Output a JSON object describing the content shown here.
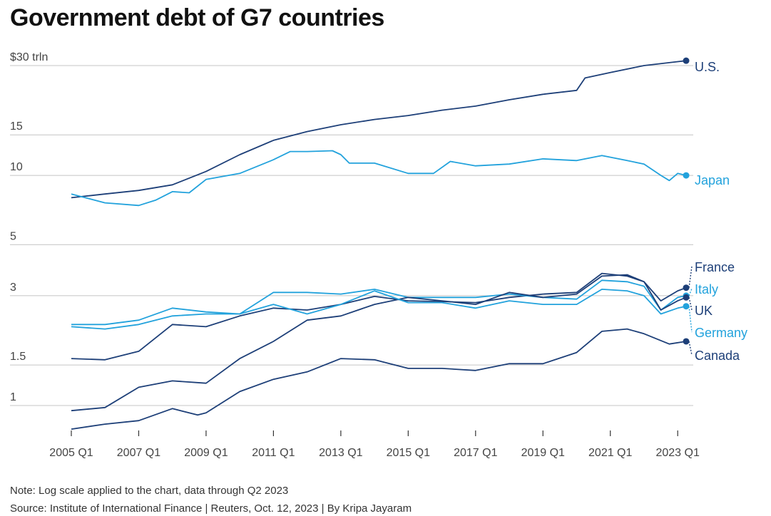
{
  "title": "Government debt of G7 countries",
  "note": "Note: Log scale applied to the chart, data through Q2 2023",
  "source": "Source: Institute of International Finance | Reuters, Oct. 12, 2023 | By Kripa Jayaram",
  "colors": {
    "dark": "#1d3f78",
    "light": "#22a2dc",
    "grid": "#c4c4c4",
    "text": "#444444"
  },
  "chart_data": {
    "type": "line",
    "y_scale": "log",
    "ylim": [
      0.75,
      31
    ],
    "y_ticks": [
      {
        "value": 30,
        "label": "$30 trln"
      },
      {
        "value": 15,
        "label": "15"
      },
      {
        "value": 10,
        "label": "10"
      },
      {
        "value": 5,
        "label": "5"
      },
      {
        "value": 3,
        "label": "3"
      },
      {
        "value": 1.5,
        "label": "1.5"
      },
      {
        "value": 1,
        "label": "1"
      }
    ],
    "x_start": "2005 Q1",
    "x_end": "2023 Q2",
    "x_ticks": [
      "2005 Q1",
      "2007 Q1",
      "2009 Q1",
      "2011 Q1",
      "2013 Q1",
      "2015 Q1",
      "2017 Q1",
      "2019 Q1",
      "2021 Q1",
      "2023 Q1"
    ],
    "grid": true,
    "series": [
      {
        "name": "U.S.",
        "color": "dark",
        "end_value": 31.5,
        "points": [
          [
            2005.0,
            8.0
          ],
          [
            2006.0,
            8.3
          ],
          [
            2007.0,
            8.6
          ],
          [
            2008.0,
            9.1
          ],
          [
            2009.0,
            10.4
          ],
          [
            2010.0,
            12.3
          ],
          [
            2011.0,
            14.2
          ],
          [
            2012.0,
            15.5
          ],
          [
            2013.0,
            16.6
          ],
          [
            2014.0,
            17.5
          ],
          [
            2015.0,
            18.2
          ],
          [
            2016.0,
            19.2
          ],
          [
            2017.0,
            20.0
          ],
          [
            2018.0,
            21.3
          ],
          [
            2019.0,
            22.5
          ],
          [
            2020.0,
            23.4
          ],
          [
            2020.25,
            26.5
          ],
          [
            2021.0,
            28.0
          ],
          [
            2022.0,
            30.0
          ],
          [
            2023.0,
            31.2
          ],
          [
            2023.25,
            31.5
          ]
        ]
      },
      {
        "name": "Japan",
        "color": "light",
        "end_value": 10.0,
        "points": [
          [
            2005.0,
            8.3
          ],
          [
            2006.0,
            7.6
          ],
          [
            2007.0,
            7.4
          ],
          [
            2007.5,
            7.8
          ],
          [
            2008.0,
            8.5
          ],
          [
            2008.5,
            8.4
          ],
          [
            2009.0,
            9.6
          ],
          [
            2010.0,
            10.2
          ],
          [
            2011.0,
            11.7
          ],
          [
            2011.5,
            12.7
          ],
          [
            2012.0,
            12.7
          ],
          [
            2012.75,
            12.8
          ],
          [
            2013.0,
            12.3
          ],
          [
            2013.25,
            11.3
          ],
          [
            2014.0,
            11.3
          ],
          [
            2015.0,
            10.2
          ],
          [
            2015.75,
            10.2
          ],
          [
            2016.25,
            11.5
          ],
          [
            2017.0,
            11.0
          ],
          [
            2018.0,
            11.2
          ],
          [
            2019.0,
            11.8
          ],
          [
            2020.0,
            11.6
          ],
          [
            2020.75,
            12.2
          ],
          [
            2021.5,
            11.6
          ],
          [
            2022.0,
            11.2
          ],
          [
            2022.5,
            10.0
          ],
          [
            2022.75,
            9.5
          ],
          [
            2023.0,
            10.2
          ],
          [
            2023.25,
            10.0
          ]
        ]
      },
      {
        "name": "France",
        "color": "dark",
        "end_value": 3.25,
        "points": [
          [
            2005.0,
            1.6
          ],
          [
            2006.0,
            1.58
          ],
          [
            2007.0,
            1.72
          ],
          [
            2008.0,
            2.25
          ],
          [
            2009.0,
            2.2
          ],
          [
            2010.0,
            2.45
          ],
          [
            2011.0,
            2.65
          ],
          [
            2012.0,
            2.6
          ],
          [
            2013.0,
            2.75
          ],
          [
            2014.0,
            2.98
          ],
          [
            2015.0,
            2.85
          ],
          [
            2016.0,
            2.83
          ],
          [
            2017.0,
            2.8
          ],
          [
            2018.0,
            2.95
          ],
          [
            2019.0,
            3.05
          ],
          [
            2020.0,
            3.1
          ],
          [
            2020.75,
            3.75
          ],
          [
            2021.5,
            3.65
          ],
          [
            2022.0,
            3.45
          ],
          [
            2022.5,
            2.85
          ],
          [
            2023.0,
            3.15
          ],
          [
            2023.25,
            3.25
          ]
        ]
      },
      {
        "name": "Italy",
        "color": "light",
        "end_value": 3.0,
        "points": [
          [
            2005.0,
            2.2
          ],
          [
            2006.0,
            2.15
          ],
          [
            2007.0,
            2.25
          ],
          [
            2008.0,
            2.45
          ],
          [
            2009.0,
            2.5
          ],
          [
            2010.0,
            2.5
          ],
          [
            2011.0,
            3.1
          ],
          [
            2012.0,
            3.1
          ],
          [
            2013.0,
            3.05
          ],
          [
            2014.0,
            3.2
          ],
          [
            2015.0,
            2.95
          ],
          [
            2016.0,
            2.95
          ],
          [
            2017.0,
            2.95
          ],
          [
            2018.0,
            3.05
          ],
          [
            2019.0,
            2.95
          ],
          [
            2020.0,
            2.9
          ],
          [
            2020.75,
            3.5
          ],
          [
            2021.5,
            3.45
          ],
          [
            2022.0,
            3.3
          ],
          [
            2022.5,
            2.6
          ],
          [
            2023.0,
            2.95
          ],
          [
            2023.25,
            3.0
          ]
        ]
      },
      {
        "name": "UK",
        "color": "dark",
        "end_value": 2.95,
        "points": [
          [
            2005.0,
            0.95
          ],
          [
            2006.0,
            0.98
          ],
          [
            2007.0,
            1.2
          ],
          [
            2008.0,
            1.28
          ],
          [
            2009.0,
            1.25
          ],
          [
            2010.0,
            1.6
          ],
          [
            2011.0,
            1.9
          ],
          [
            2012.0,
            2.35
          ],
          [
            2013.0,
            2.45
          ],
          [
            2014.0,
            2.75
          ],
          [
            2015.0,
            2.95
          ],
          [
            2016.0,
            2.85
          ],
          [
            2017.0,
            2.75
          ],
          [
            2018.0,
            3.1
          ],
          [
            2019.0,
            2.95
          ],
          [
            2020.0,
            3.05
          ],
          [
            2020.75,
            3.65
          ],
          [
            2021.5,
            3.7
          ],
          [
            2022.0,
            3.45
          ],
          [
            2022.5,
            2.6
          ],
          [
            2023.0,
            2.85
          ],
          [
            2023.25,
            2.95
          ]
        ]
      },
      {
        "name": "Germany",
        "color": "light",
        "end_value": 2.7,
        "points": [
          [
            2005.0,
            2.25
          ],
          [
            2006.0,
            2.25
          ],
          [
            2007.0,
            2.35
          ],
          [
            2008.0,
            2.65
          ],
          [
            2009.0,
            2.55
          ],
          [
            2010.0,
            2.5
          ],
          [
            2011.0,
            2.75
          ],
          [
            2012.0,
            2.5
          ],
          [
            2013.0,
            2.75
          ],
          [
            2014.0,
            3.15
          ],
          [
            2015.0,
            2.8
          ],
          [
            2016.0,
            2.8
          ],
          [
            2017.0,
            2.65
          ],
          [
            2018.0,
            2.85
          ],
          [
            2019.0,
            2.75
          ],
          [
            2020.0,
            2.75
          ],
          [
            2020.75,
            3.2
          ],
          [
            2021.5,
            3.15
          ],
          [
            2022.0,
            3.0
          ],
          [
            2022.5,
            2.5
          ],
          [
            2023.0,
            2.65
          ],
          [
            2023.25,
            2.7
          ]
        ]
      },
      {
        "name": "Canada",
        "color": "dark",
        "end_value": 1.9,
        "points": [
          [
            2005.0,
            0.79
          ],
          [
            2006.0,
            0.83
          ],
          [
            2007.0,
            0.86
          ],
          [
            2008.0,
            0.97
          ],
          [
            2008.75,
            0.91
          ],
          [
            2009.0,
            0.93
          ],
          [
            2010.0,
            1.15
          ],
          [
            2011.0,
            1.3
          ],
          [
            2012.0,
            1.4
          ],
          [
            2013.0,
            1.6
          ],
          [
            2014.0,
            1.58
          ],
          [
            2015.0,
            1.45
          ],
          [
            2016.0,
            1.45
          ],
          [
            2017.0,
            1.42
          ],
          [
            2018.0,
            1.52
          ],
          [
            2019.0,
            1.52
          ],
          [
            2020.0,
            1.7
          ],
          [
            2020.75,
            2.1
          ],
          [
            2021.5,
            2.15
          ],
          [
            2022.0,
            2.05
          ],
          [
            2022.75,
            1.85
          ],
          [
            2023.25,
            1.9
          ]
        ]
      }
    ]
  }
}
